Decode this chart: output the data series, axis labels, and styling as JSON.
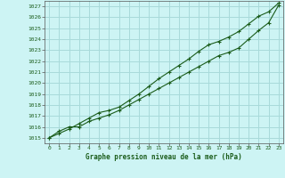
{
  "title": "Graphe pression niveau de la mer (hPa)",
  "bg_color": "#cdf4f4",
  "grid_color": "#a8dada",
  "line_color": "#1a5c1a",
  "marker_color": "#1a5c1a",
  "xlim": [
    -0.5,
    23.5
  ],
  "ylim": [
    1014.5,
    1027.5
  ],
  "yticks": [
    1015,
    1016,
    1017,
    1018,
    1019,
    1020,
    1021,
    1022,
    1023,
    1024,
    1025,
    1026,
    1027
  ],
  "xticks": [
    0,
    1,
    2,
    3,
    4,
    5,
    6,
    7,
    8,
    9,
    10,
    11,
    12,
    13,
    14,
    15,
    16,
    17,
    18,
    19,
    20,
    21,
    22,
    23
  ],
  "series1_x": [
    0,
    1,
    2,
    3,
    4,
    5,
    6,
    7,
    8,
    9,
    10,
    11,
    12,
    13,
    14,
    15,
    16,
    17,
    18,
    19,
    20,
    21,
    22,
    23
  ],
  "series1_y": [
    1015.0,
    1015.6,
    1016.0,
    1016.0,
    1016.5,
    1016.8,
    1017.1,
    1017.5,
    1018.0,
    1018.5,
    1019.0,
    1019.5,
    1020.0,
    1020.5,
    1021.0,
    1021.5,
    1022.0,
    1022.5,
    1022.8,
    1023.2,
    1024.0,
    1024.8,
    1025.5,
    1027.1
  ],
  "series2_x": [
    0,
    1,
    2,
    3,
    4,
    5,
    6,
    7,
    8,
    9,
    10,
    11,
    12,
    13,
    14,
    15,
    16,
    17,
    18,
    19,
    20,
    21,
    22,
    23
  ],
  "series2_y": [
    1015.0,
    1015.4,
    1015.8,
    1016.3,
    1016.8,
    1017.3,
    1017.5,
    1017.8,
    1018.4,
    1019.0,
    1019.7,
    1020.4,
    1021.0,
    1021.6,
    1022.2,
    1022.9,
    1023.5,
    1023.8,
    1024.2,
    1024.7,
    1025.4,
    1026.1,
    1026.5,
    1027.3
  ]
}
